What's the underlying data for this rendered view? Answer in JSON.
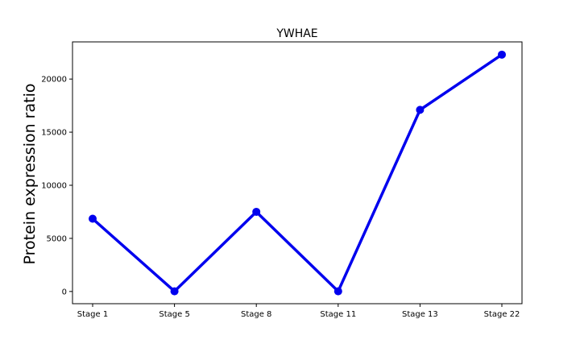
{
  "chart_data": {
    "type": "line",
    "title": "YWHAE",
    "xlabel": "",
    "ylabel": "Protein expression ratio",
    "categories": [
      "Stage 1",
      "Stage 5",
      "Stage 8",
      "Stage 11",
      "Stage 13",
      "Stage 22"
    ],
    "series": [
      {
        "values": [
          6850,
          20,
          7500,
          20,
          17100,
          22300
        ],
        "color": "#0000ee",
        "marker": "circle"
      }
    ],
    "ylim": [
      -1150,
      23500
    ],
    "yticks": [
      0,
      5000,
      10000,
      15000,
      20000
    ],
    "ytick_labels": [
      "0",
      "5000",
      "10000",
      "15000",
      "20000"
    ],
    "grid": false,
    "legend": "none"
  }
}
